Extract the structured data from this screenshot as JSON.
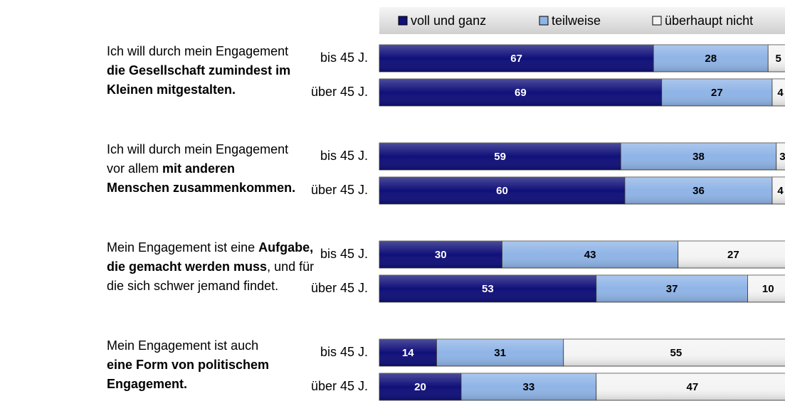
{
  "chart_data": {
    "type": "bar",
    "orientation": "horizontal",
    "stacked": true,
    "legend": "top",
    "xlim": [
      0,
      100
    ],
    "categories": [
      "bis 45 J.",
      "über 45 J.",
      "bis 45 J.",
      "über 45 J.",
      "bis 45 J.",
      "über 45 J.",
      "bis 45 J.",
      "über 45 J."
    ],
    "groups": [
      {
        "lines": [
          [
            {
              "text": "Ich will durch mein Engagement",
              "bold": false
            }
          ],
          [
            {
              "text": "die Gesellschaft zumindest im",
              "bold": true
            }
          ],
          [
            {
              "text": "Kleinen mitgestalten.",
              "bold": true
            }
          ]
        ]
      },
      {
        "lines": [
          [
            {
              "text": "Ich will durch mein Engagement",
              "bold": false
            }
          ],
          [
            {
              "text": "vor allem ",
              "bold": false
            },
            {
              "text": "mit anderen",
              "bold": true
            }
          ],
          [
            {
              "text": "Menschen zusammenkommen.",
              "bold": true
            }
          ]
        ]
      },
      {
        "lines": [
          [
            {
              "text": "Mein Engagement ist eine ",
              "bold": false
            },
            {
              "text": "Aufgabe,",
              "bold": true
            }
          ],
          [
            {
              "text": "die gemacht werden muss",
              "bold": true
            },
            {
              "text": ", und für",
              "bold": false
            }
          ],
          [
            {
              "text": "die sich schwer jemand findet.",
              "bold": false
            }
          ]
        ]
      },
      {
        "lines": [
          [
            {
              "text": "Mein Engagement ist auch",
              "bold": false
            }
          ],
          [
            {
              "text": "eine Form von politischem",
              "bold": true
            }
          ],
          [
            {
              "text": "Engagement.",
              "bold": true
            }
          ]
        ]
      }
    ],
    "series": [
      {
        "name": "voll und ganz",
        "color": "#10107a",
        "label_color": "#ffffff",
        "values": [
          67,
          69,
          59,
          60,
          30,
          53,
          14,
          20
        ]
      },
      {
        "name": "teilweise",
        "color": "#8fb4e6",
        "label_color": "#000000",
        "values": [
          28,
          27,
          38,
          36,
          43,
          37,
          31,
          33
        ]
      },
      {
        "name": "überhaupt nicht",
        "color": "#f4f4f4",
        "label_color": "#000000",
        "values": [
          5,
          4,
          3,
          4,
          27,
          10,
          55,
          47
        ]
      }
    ]
  }
}
